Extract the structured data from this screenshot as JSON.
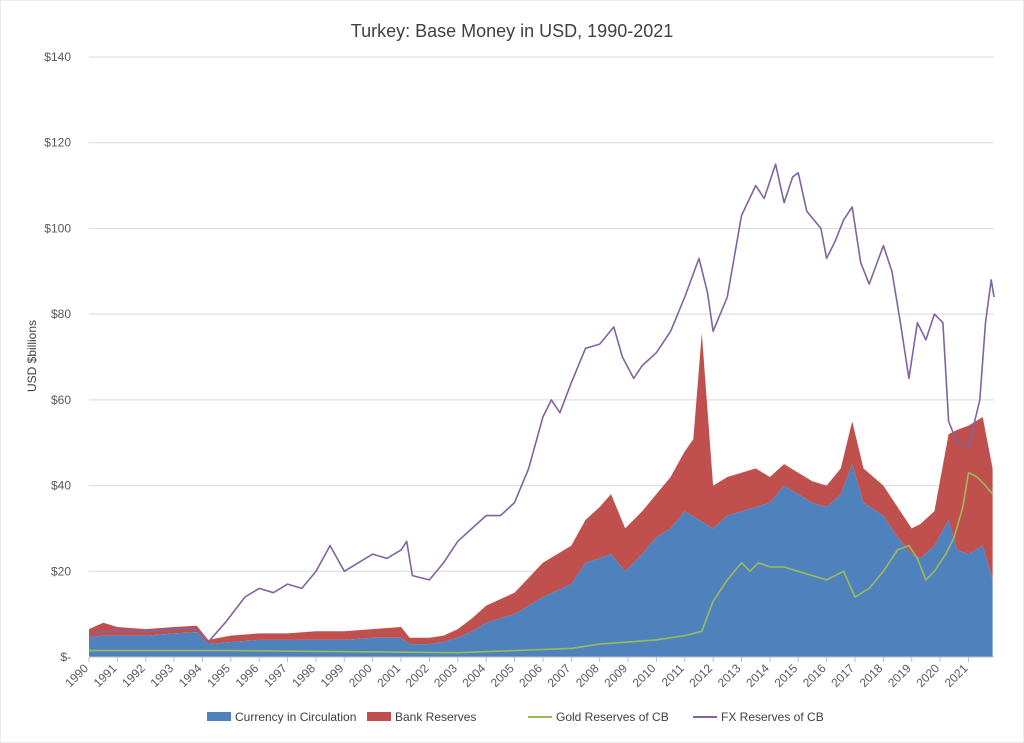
{
  "chart_data": {
    "type": "area",
    "title": "Turkey: Base Money in USD, 1990-2021",
    "ylabel": "USD $billions",
    "xlabel": "",
    "ylim": [
      0,
      140
    ],
    "xlim": [
      1990,
      2021.9
    ],
    "y_ticks": [
      0,
      20,
      40,
      60,
      80,
      100,
      120,
      140
    ],
    "y_tick_labels": [
      "$-",
      "$20",
      "$40",
      "$60",
      "$80",
      "$100",
      "$120",
      "$140"
    ],
    "x_tick_labels": [
      "1990",
      "1991",
      "1992",
      "1993",
      "1994",
      "1995",
      "1996",
      "1997",
      "1998",
      "1999",
      "2000",
      "2001",
      "2002",
      "2003",
      "2004",
      "2005",
      "2006",
      "2007",
      "2008",
      "2009",
      "2010",
      "2011",
      "2012",
      "2013",
      "2014",
      "2015",
      "2016",
      "2017",
      "2018",
      "2019",
      "2020",
      "2021"
    ],
    "grid": "horizontal",
    "legend_position": "bottom",
    "colors": {
      "currency": "#4f81bd",
      "bank": "#c0504d",
      "gold": "#9bbb59",
      "fx": "#8064a2",
      "grid": "#d9d9d9",
      "axis": "#bfbfbf"
    },
    "series": [
      {
        "name": "Currency in Circulation",
        "kind": "stacked-area",
        "points": [
          [
            1990,
            4.5
          ],
          [
            1990.5,
            5
          ],
          [
            1991,
            5
          ],
          [
            1992,
            5
          ],
          [
            1993,
            5.5
          ],
          [
            1993.8,
            5.8
          ],
          [
            1994.2,
            3
          ],
          [
            1995,
            3.5
          ],
          [
            1996,
            4
          ],
          [
            1997,
            4
          ],
          [
            1998,
            4
          ],
          [
            1999,
            4
          ],
          [
            2000,
            4.5
          ],
          [
            2001,
            4.5
          ],
          [
            2001.3,
            3
          ],
          [
            2002,
            3
          ],
          [
            2002.5,
            3.5
          ],
          [
            2003,
            4.5
          ],
          [
            2003.5,
            6
          ],
          [
            2004,
            8
          ],
          [
            2005,
            10
          ],
          [
            2006,
            14
          ],
          [
            2007,
            17
          ],
          [
            2007.5,
            22
          ],
          [
            2008,
            23
          ],
          [
            2008.4,
            24
          ],
          [
            2008.9,
            20
          ],
          [
            2009.5,
            24
          ],
          [
            2010,
            28
          ],
          [
            2010.5,
            30
          ],
          [
            2011,
            34
          ],
          [
            2011.5,
            32
          ],
          [
            2012,
            30
          ],
          [
            2012.5,
            33
          ],
          [
            2013,
            34
          ],
          [
            2013.5,
            35
          ],
          [
            2014,
            36
          ],
          [
            2014.5,
            40
          ],
          [
            2015,
            38
          ],
          [
            2015.5,
            36
          ],
          [
            2016,
            35
          ],
          [
            2016.5,
            38
          ],
          [
            2016.9,
            45
          ],
          [
            2017.3,
            36
          ],
          [
            2018,
            33
          ],
          [
            2018.5,
            28
          ],
          [
            2019,
            24
          ],
          [
            2019.3,
            23
          ],
          [
            2019.8,
            26
          ],
          [
            2020.3,
            32
          ],
          [
            2020.6,
            25
          ],
          [
            2021,
            24
          ],
          [
            2021.5,
            26
          ],
          [
            2021.85,
            18
          ]
        ]
      },
      {
        "name": "Bank Reserves",
        "kind": "stacked-area",
        "points": [
          [
            1990,
            2
          ],
          [
            1990.5,
            3
          ],
          [
            1991,
            2
          ],
          [
            1992,
            1.5
          ],
          [
            1993,
            1.5
          ],
          [
            1993.8,
            1.5
          ],
          [
            1994.2,
            1
          ],
          [
            1995,
            1.5
          ],
          [
            1996,
            1.5
          ],
          [
            1997,
            1.5
          ],
          [
            1998,
            2
          ],
          [
            1999,
            2
          ],
          [
            2000,
            2
          ],
          [
            2001,
            2.5
          ],
          [
            2001.3,
            1.5
          ],
          [
            2002,
            1.5
          ],
          [
            2002.5,
            1.5
          ],
          [
            2003,
            2
          ],
          [
            2003.5,
            3
          ],
          [
            2004,
            4
          ],
          [
            2005,
            5
          ],
          [
            2006,
            8
          ],
          [
            2007,
            9
          ],
          [
            2007.5,
            10
          ],
          [
            2008,
            12
          ],
          [
            2008.4,
            14
          ],
          [
            2008.9,
            10
          ],
          [
            2009.5,
            10
          ],
          [
            2010,
            10
          ],
          [
            2010.5,
            12
          ],
          [
            2011,
            14
          ],
          [
            2011.3,
            18
          ],
          [
            2011.6,
            44
          ],
          [
            2012,
            10
          ],
          [
            2012.5,
            9
          ],
          [
            2013,
            9
          ],
          [
            2013.5,
            9
          ],
          [
            2014,
            6
          ],
          [
            2014.5,
            5
          ],
          [
            2015,
            5
          ],
          [
            2015.5,
            5
          ],
          [
            2016,
            5
          ],
          [
            2016.5,
            6
          ],
          [
            2016.9,
            10
          ],
          [
            2017.3,
            8
          ],
          [
            2018,
            7
          ],
          [
            2018.5,
            7
          ],
          [
            2019,
            6
          ],
          [
            2019.3,
            8
          ],
          [
            2019.8,
            8
          ],
          [
            2020.3,
            20
          ],
          [
            2020.6,
            28
          ],
          [
            2021,
            30
          ],
          [
            2021.5,
            30
          ],
          [
            2021.85,
            26
          ]
        ]
      },
      {
        "name": "Gold Reserves of CB",
        "kind": "line",
        "points": [
          [
            1990,
            1.5
          ],
          [
            1995,
            1.5
          ],
          [
            2000,
            1.2
          ],
          [
            2003,
            1
          ],
          [
            2005,
            1.5
          ],
          [
            2007,
            2
          ],
          [
            2008,
            3
          ],
          [
            2010,
            4
          ],
          [
            2011,
            5
          ],
          [
            2011.6,
            6
          ],
          [
            2012,
            13
          ],
          [
            2012.5,
            18
          ],
          [
            2013,
            22
          ],
          [
            2013.3,
            20
          ],
          [
            2013.6,
            22
          ],
          [
            2014,
            21
          ],
          [
            2014.5,
            21
          ],
          [
            2015,
            20
          ],
          [
            2015.5,
            19
          ],
          [
            2016,
            18
          ],
          [
            2016.6,
            20
          ],
          [
            2017,
            14
          ],
          [
            2017.5,
            16
          ],
          [
            2018,
            20
          ],
          [
            2018.5,
            25
          ],
          [
            2018.9,
            26
          ],
          [
            2019.2,
            23
          ],
          [
            2019.5,
            18
          ],
          [
            2019.8,
            20
          ],
          [
            2020.2,
            24
          ],
          [
            2020.5,
            28
          ],
          [
            2020.8,
            35
          ],
          [
            2021,
            43
          ],
          [
            2021.3,
            42
          ],
          [
            2021.6,
            40
          ],
          [
            2021.85,
            38
          ]
        ]
      },
      {
        "name": "FX Reserves of CB",
        "kind": "line",
        "points": [
          [
            1990,
            5
          ],
          [
            1990.5,
            6
          ],
          [
            1991,
            6
          ],
          [
            1992,
            6
          ],
          [
            1993,
            6.5
          ],
          [
            1993.8,
            6.5
          ],
          [
            1994.2,
            3.5
          ],
          [
            1994.8,
            8
          ],
          [
            1995.5,
            14
          ],
          [
            1996,
            16
          ],
          [
            1996.5,
            15
          ],
          [
            1997,
            17
          ],
          [
            1997.5,
            16
          ],
          [
            1998,
            20
          ],
          [
            1998.5,
            26
          ],
          [
            1999,
            20
          ],
          [
            1999.5,
            22
          ],
          [
            2000,
            24
          ],
          [
            2000.5,
            23
          ],
          [
            2001,
            25
          ],
          [
            2001.2,
            27
          ],
          [
            2001.4,
            19
          ],
          [
            2002,
            18
          ],
          [
            2002.5,
            22
          ],
          [
            2003,
            27
          ],
          [
            2003.5,
            30
          ],
          [
            2004,
            33
          ],
          [
            2004.5,
            33
          ],
          [
            2005,
            36
          ],
          [
            2005.5,
            44
          ],
          [
            2006,
            56
          ],
          [
            2006.3,
            60
          ],
          [
            2006.6,
            57
          ],
          [
            2007,
            64
          ],
          [
            2007.5,
            72
          ],
          [
            2008,
            73
          ],
          [
            2008.5,
            77
          ],
          [
            2008.8,
            70
          ],
          [
            2009.2,
            65
          ],
          [
            2009.5,
            68
          ],
          [
            2010,
            71
          ],
          [
            2010.5,
            76
          ],
          [
            2011,
            84
          ],
          [
            2011.5,
            93
          ],
          [
            2011.8,
            85
          ],
          [
            2012,
            76
          ],
          [
            2012.5,
            84
          ],
          [
            2013,
            103
          ],
          [
            2013.5,
            110
          ],
          [
            2013.8,
            107
          ],
          [
            2014.2,
            115
          ],
          [
            2014.5,
            106
          ],
          [
            2014.8,
            112
          ],
          [
            2015,
            113
          ],
          [
            2015.3,
            104
          ],
          [
            2015.8,
            100
          ],
          [
            2016,
            93
          ],
          [
            2016.3,
            97
          ],
          [
            2016.6,
            102
          ],
          [
            2016.9,
            105
          ],
          [
            2017.2,
            92
          ],
          [
            2017.5,
            87
          ],
          [
            2018,
            96
          ],
          [
            2018.3,
            90
          ],
          [
            2018.6,
            78
          ],
          [
            2018.9,
            65
          ],
          [
            2019.2,
            78
          ],
          [
            2019.5,
            74
          ],
          [
            2019.8,
            80
          ],
          [
            2020.1,
            78
          ],
          [
            2020.3,
            55
          ],
          [
            2020.6,
            50
          ],
          [
            2021,
            49
          ],
          [
            2021.4,
            60
          ],
          [
            2021.6,
            78
          ],
          [
            2021.8,
            88
          ],
          [
            2021.9,
            84
          ]
        ]
      }
    ]
  }
}
